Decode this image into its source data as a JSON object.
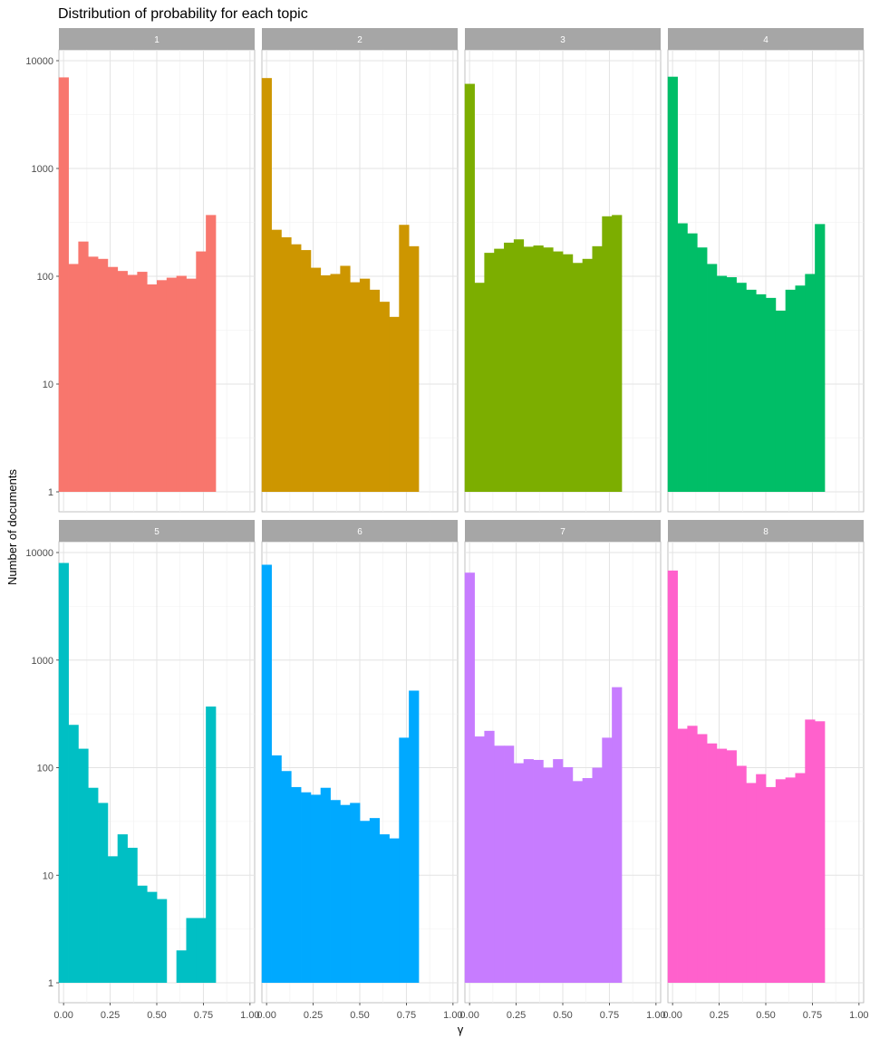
{
  "chart_data": {
    "type": "bar",
    "title": "Distribution of probability for each topic",
    "xlabel": "γ",
    "ylabel": "Number of documents",
    "yscale": "log10",
    "ylim": [
      1,
      10000
    ],
    "xlim": [
      -0.025,
      1.025
    ],
    "x_ticks": [
      "0.00",
      "0.25",
      "0.50",
      "0.75",
      "1.00"
    ],
    "y_ticks": [
      "1",
      "10",
      "100",
      "1000",
      "10000"
    ],
    "grid": true,
    "legend": "none",
    "bins": [
      0.0,
      0.0526,
      0.1053,
      0.1579,
      0.2105,
      0.2632,
      0.3158,
      0.3684,
      0.4211,
      0.4737,
      0.5263,
      0.5789,
      0.6316,
      0.6842,
      0.7368,
      0.7895,
      0.8421,
      0.8947,
      0.9474,
      1.0
    ],
    "facets": [
      {
        "label": "1",
        "color": "#F8766D",
        "values": [
          7000,
          130,
          210,
          152,
          145,
          122,
          112,
          103,
          110,
          84,
          92,
          97,
          101,
          95,
          170,
          370,
          null,
          null,
          null,
          null
        ]
      },
      {
        "label": "2",
        "color": "#CD9600",
        "values": [
          6900,
          270,
          230,
          198,
          175,
          120,
          102,
          105,
          125,
          88,
          95,
          75,
          58,
          42,
          300,
          190,
          null,
          null,
          null,
          null
        ]
      },
      {
        "label": "3",
        "color": "#7CAE00",
        "values": [
          6100,
          87,
          165,
          180,
          205,
          220,
          188,
          193,
          185,
          170,
          160,
          133,
          145,
          190,
          360,
          370,
          null,
          null,
          null,
          null
        ]
      },
      {
        "label": "4",
        "color": "#00BE67",
        "values": [
          7100,
          310,
          250,
          185,
          130,
          101,
          98,
          87,
          75,
          68,
          63,
          48,
          75,
          82,
          105,
          305,
          null,
          null,
          null,
          null
        ]
      },
      {
        "label": "5",
        "color": "#00BFC4",
        "values": [
          8000,
          250,
          150,
          65,
          47,
          15,
          24,
          18,
          8,
          7,
          6,
          null,
          2,
          4,
          4,
          370,
          null,
          null,
          null,
          null
        ]
      },
      {
        "label": "6",
        "color": "#00A9FF",
        "values": [
          7700,
          130,
          93,
          66,
          59,
          56,
          65,
          50,
          45,
          47,
          32,
          34,
          24,
          22,
          190,
          520,
          null,
          null,
          null,
          null
        ]
      },
      {
        "label": "7",
        "color": "#C77CFF",
        "values": [
          6500,
          195,
          220,
          160,
          160,
          110,
          120,
          118,
          100,
          120,
          101,
          75,
          80,
          100,
          190,
          560,
          null,
          null,
          null,
          null
        ]
      },
      {
        "label": "8",
        "color": "#FF61CC",
        "values": [
          6800,
          230,
          245,
          205,
          168,
          150,
          145,
          104,
          72,
          87,
          66,
          78,
          81,
          89,
          280,
          270,
          null,
          null,
          null,
          null
        ]
      }
    ]
  }
}
